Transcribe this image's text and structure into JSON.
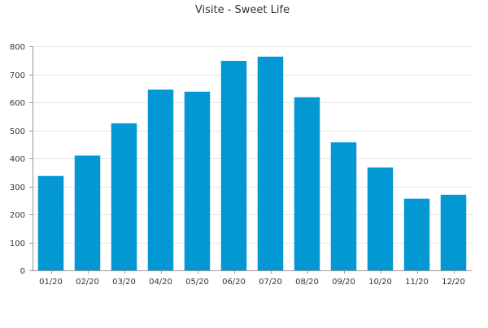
{
  "chart_data": {
    "type": "bar",
    "title": "Visite - Sweet Life",
    "xlabel": "",
    "ylabel": "",
    "categories": [
      "01/20",
      "02/20",
      "03/20",
      "04/20",
      "05/20",
      "06/20",
      "07/20",
      "08/20",
      "09/20",
      "10/20",
      "11/20",
      "12/20"
    ],
    "values": [
      337,
      410,
      525,
      645,
      638,
      748,
      763,
      618,
      457,
      367,
      256,
      270
    ],
    "ylim": [
      0,
      800
    ],
    "yticks": [
      "0",
      "100",
      "200",
      "300",
      "400",
      "500",
      "600",
      "700",
      "800"
    ],
    "grid": true,
    "legend": "none",
    "colors": {
      "bar": "#0398d4",
      "grid": "#e6e6e6",
      "axis": "#999999",
      "text": "#333333"
    }
  }
}
